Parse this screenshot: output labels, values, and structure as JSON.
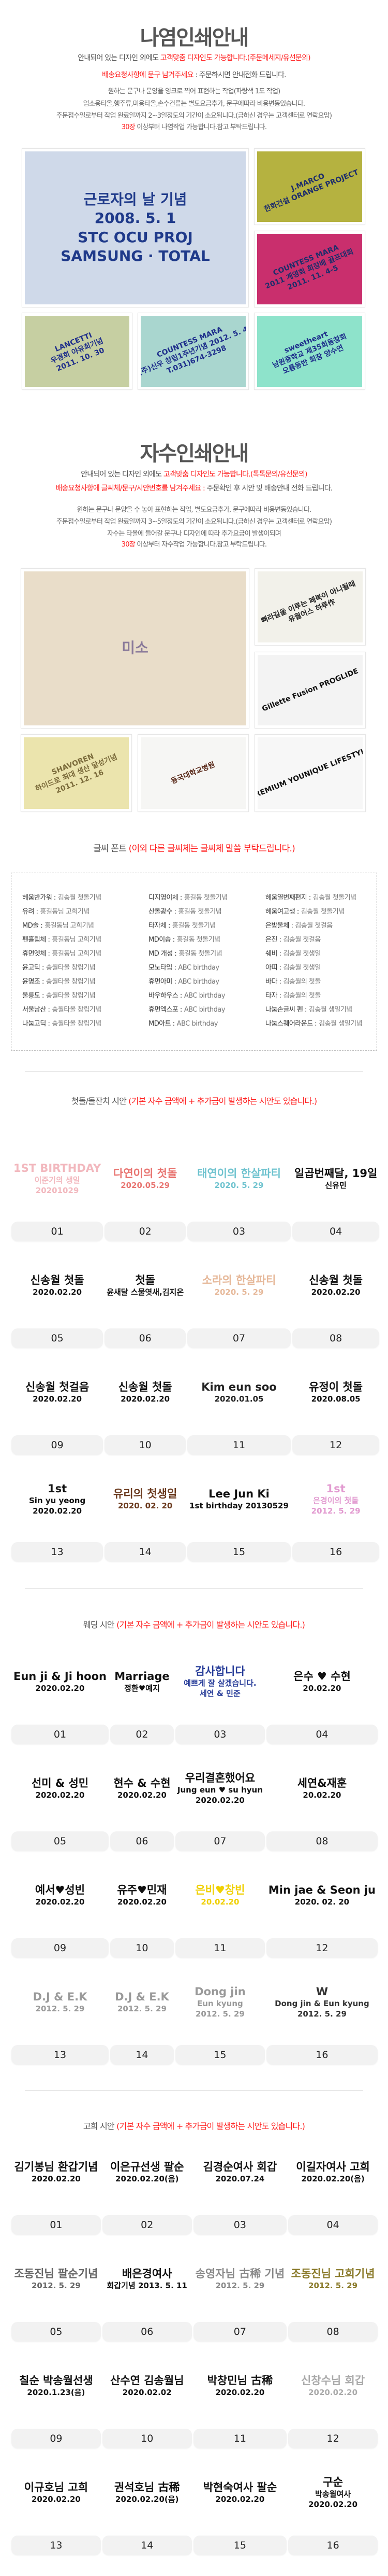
{
  "colors": {
    "accent_red": "#ff2020",
    "title_gray": "#555555",
    "label_bg": "#f2f2f2"
  },
  "print": {
    "title": "나염인쇄안내",
    "line1_plain": "안내되어 있는 디자인 외에도 ",
    "line1_red": "고객맞춤 디자인도 가능합니다.(주문메세지/유선문의)",
    "line2_red": "배송요청사항에 문구 남겨주세요",
    "line2_plain": " : 주문하시면 안내전화 드립니다.",
    "line3": "원하는 문구나 문양을 잉크로 찍어 표현하는 작업(파랑색 1도 작업)",
    "line4": "업소용타올,행주류,미용타올,손수건류는 별도요금추가, 문구에따라 비용변동있습니다.",
    "line5": "주문접수일로부터 작업 완료일까지 2~3일정도의 기간이 소요됩니다.(급하신 경우는 고객센터로 연락요망)",
    "line6_red": "30장",
    "line6_plain": " 이상부터 나염작업 가능합니다.참고 부탁드립니다.",
    "photos": [
      {
        "text": "근로자의 날 기념 / 2008. 5. 1 / STC OCU PROJ / SAMSUNG · TOTAL",
        "bg": "#cfd9e9",
        "fg": "#1f3a8a"
      },
      {
        "text": "J.MARCO / 한화건설 ORANGE PROJECT",
        "bg": "#b5b240",
        "fg": "#1d2d6b"
      },
      {
        "text": "COUNTESS MARA / 2011 계영회 회장배 골프대회 / 2011. 11. 4-5",
        "bg": "#c92f6d",
        "fg": "#1d2d6b"
      },
      {
        "text": "LANCETTI / 우경회 야유회기념 / 2011. 10. 30",
        "bg": "#c6cfa2",
        "fg": "#1d2d8b"
      },
      {
        "text": "COUNTESS MARA / (주)신우 창립1주년기념 2012. 5. 4 / T.031)674-3298",
        "bg": "#a9d6cf",
        "fg": "#1d2d8b"
      },
      {
        "text": "sweetheart / 남원중학교 제35회동창회 / 오름동반 회장 양수연",
        "bg": "#8ee3cb",
        "fg": "#1d2d8b"
      }
    ]
  },
  "embroidery": {
    "title": "자수인쇄안내",
    "line1_plain": "안내되어 있는 디자인 외에도 ",
    "line1_red": "고객맞춤 디자인도 가능합니다.(톡톡문의/유선문의)",
    "line2_red": "배송요청사항에 글씨체/문구/시안번호를 남겨주세요 :",
    "line2_plain": " 주문확인 후 시안 및 배송안내 전화 드립니다.",
    "line3": "원하는 문구나 문양을 수 놓아 표현하는 작업, 별도요금추가, 문구에따라 비용변동있습니다.",
    "line4": "주문접수일로부터 작업 완료일까지 3~5일정도의 기간이 소요됩니다.(급하신 경우는 고객센터로 연락요망)",
    "line5": "자수는 타올에 들어갈 문구나 디자인에 따라 추가요금이 발생이되며",
    "line6_red": "30장",
    "line6_plain": " 이상부터 자수작업 가능합니다.참고 부탁드립니다.",
    "photos": [
      {
        "text": "미소",
        "bg": "#e9ddc9",
        "fg": "#8a7a9a"
      },
      {
        "text": "뻐라길을 이루는 페북이 아니될때 / 유월어스 하루作",
        "bg": "#f2f1ea",
        "fg": "#222"
      },
      {
        "text": "Gillette Fusion PROGLIDE",
        "bg": "#f3f3f3",
        "fg": "#111"
      },
      {
        "text": "SHAVOREN / 하이드로 최대 생산 달성기념 / 2011. 12. 16",
        "bg": "#ebe4ad",
        "fg": "#7a6a3a"
      },
      {
        "text": "동국대학교병원",
        "bg": "#f6f6f4",
        "fg": "#5a2a1a"
      },
      {
        "text": "PREMIUM YOUNIQUE LIFESTYLE",
        "bg": "#f7f7f7",
        "fg": "#111"
      }
    ]
  },
  "fonts": {
    "heading_plain": "글씨 폰트 ",
    "heading_red": "(이외 다른 글씨체는 글씨체 말씀 부탁드립니다.)",
    "columns": [
      [
        {
          "name": "헤움반가워 :",
          "sample": "김송월 첫돌기념"
        },
        {
          "name": "유려 :",
          "sample": "홍길동님 고희기념"
        },
        {
          "name": "MD솔 :",
          "sample": "홍길동님 고희기념"
        },
        {
          "name": "펜흘림체 :",
          "sample": "홍길동님 고희기념"
        },
        {
          "name": "휴먼옛체 :",
          "sample": "홍길동님 고희기념"
        },
        {
          "name": "윤고딕 :",
          "sample": "송월타올 창립기념"
        },
        {
          "name": "윤명조 :",
          "sample": "송월타올 창립기념"
        },
        {
          "name": "울릉도 :",
          "sample": "송월타올 창립기념"
        },
        {
          "name": "서울남산 :",
          "sample": "송월타올 창립기념"
        },
        {
          "name": "나눔고딕 :",
          "sample": "송월타올 창립기념"
        }
      ],
      [
        {
          "name": "디지영이체 :",
          "sample": "홍길동 첫돌기념"
        },
        {
          "name": "산돌광수 :",
          "sample": "홍길동 첫돌기념"
        },
        {
          "name": "타자체 :",
          "sample": "홍길동 첫돌기념"
        },
        {
          "name": "MD이솝 :",
          "sample": "홍길동 첫돌기념"
        },
        {
          "name": "MD 개성 :",
          "sample": "홍길동 첫돌기념"
        },
        {
          "name": "모노타입 :",
          "sample": "ABC birthday"
        },
        {
          "name": "휴먼아미 :",
          "sample": "ABC birthday"
        },
        {
          "name": "바우하우스 :",
          "sample": "ABC birthday"
        },
        {
          "name": "휴먼엑스포 :",
          "sample": "ABC birthday"
        },
        {
          "name": "MD아트 :",
          "sample": "ABC birthday"
        }
      ],
      [
        {
          "name": "헤움열번째편지 :",
          "sample": "김송월 첫돌기념"
        },
        {
          "name": "헤움여고생 :",
          "sample": "김송월 첫돌기념"
        },
        {
          "name": "은방울체 :",
          "sample": "김송월 첫걸음"
        },
        {
          "name": "은진 :",
          "sample": "김송월 첫걸음"
        },
        {
          "name": "쉐비 :",
          "sample": "김송월 첫생일"
        },
        {
          "name": "아띠 :",
          "sample": "김송월 첫생일"
        },
        {
          "name": "바다 :",
          "sample": "김송월의 첫돌"
        },
        {
          "name": "타자 :",
          "sample": "김송월의 첫돌"
        },
        {
          "name": "나눔손글씨 펜 :",
          "sample": "김송월 생일기념"
        },
        {
          "name": "나눔스퀘어라운드 :",
          "sample": "김송월 생일기념"
        }
      ]
    ]
  },
  "galleries": [
    {
      "heading_plain": "첫돌/돌잔치 시안 ",
      "heading_red": "(기본 자수 금액에 + 추가금이 발생하는 시안도 있습니다.)",
      "items": [
        {
          "number": "01",
          "lines": [
            "1ST BIRTHDAY",
            "이준기의 생일",
            "20201029"
          ],
          "color": "#f2b8be"
        },
        {
          "number": "02",
          "lines": [
            "다연이의 첫돌",
            "2020.05.29"
          ],
          "color": "#e8736f"
        },
        {
          "number": "03",
          "lines": [
            "태연이의 한살파티",
            "2020. 5. 29"
          ],
          "color": "#6fc3cf"
        },
        {
          "number": "04",
          "lines": [
            "일곱번째달, 19일",
            "신유민"
          ],
          "color": "#111111"
        },
        {
          "number": "05",
          "lines": [
            "신송월 첫돌",
            "2020.02.20"
          ],
          "color": "#111111"
        },
        {
          "number": "06",
          "lines": [
            "첫돌",
            "윤새달 스물엿새,김지온"
          ],
          "color": "#111111"
        },
        {
          "number": "07",
          "lines": [
            "소라의 한살파티",
            "2020. 5. 29"
          ],
          "color": "#e6b899"
        },
        {
          "number": "08",
          "lines": [
            "신송월 첫돌",
            "2020.02.20"
          ],
          "color": "#111111"
        },
        {
          "number": "09",
          "lines": [
            "신송월 첫걸음",
            "2020.02.20"
          ],
          "color": "#111111"
        },
        {
          "number": "10",
          "lines": [
            "신송월 첫돌",
            "2020.02.20"
          ],
          "color": "#111111"
        },
        {
          "number": "11",
          "lines": [
            "Kim eun soo",
            "2020.01.05"
          ],
          "color": "#222222"
        },
        {
          "number": "12",
          "lines": [
            "유정이 첫돌",
            "2020.08.05"
          ],
          "color": "#111111"
        },
        {
          "number": "13",
          "lines": [
            "1st",
            "Sin yu yeong",
            "2020.02.20"
          ],
          "color": "#111111"
        },
        {
          "number": "14",
          "lines": [
            "유리의 첫생일",
            "2020. 02. 20"
          ],
          "color": "#6b3a1e"
        },
        {
          "number": "15",
          "lines": [
            "Lee Jun Ki",
            "1st birthday 20130529"
          ],
          "color": "#111111"
        },
        {
          "number": "16",
          "lines": [
            "1st",
            "은경이의 첫돌",
            "2012. 5. 29"
          ],
          "color": "#e29ad0"
        }
      ]
    },
    {
      "heading_plain": "웨딩 시안 ",
      "heading_red": "(기본 자수 금액에 + 추가금이 발생하는 시안도 있습니다.)",
      "items": [
        {
          "number": "01",
          "lines": [
            "Eun ji & Ji hoon",
            "2020.02.20"
          ],
          "color": "#111111"
        },
        {
          "number": "02",
          "lines": [
            "Marriage",
            "정환♥예지"
          ],
          "color": "#111111"
        },
        {
          "number": "03",
          "lines": [
            "감사합니다",
            "예쁘게 잘 살겠습니다.",
            "세연 & 민준"
          ],
          "color": "#2a3f9a"
        },
        {
          "number": "04",
          "lines": [
            "은수 ♥ 수현",
            "20.02.20"
          ],
          "color": "#111111"
        },
        {
          "number": "05",
          "lines": [
            "선미 & 성민",
            "2020.02.20"
          ],
          "color": "#111111"
        },
        {
          "number": "06",
          "lines": [
            "현수 & 수현",
            "2020.02.20"
          ],
          "color": "#111111"
        },
        {
          "number": "07",
          "lines": [
            "우리결혼했어요",
            "Jung eun ♥ su hyun",
            "2020.02.20"
          ],
          "color": "#111111"
        },
        {
          "number": "08",
          "lines": [
            "세연&재훈",
            "20.02.20"
          ],
          "color": "#111111"
        },
        {
          "number": "09",
          "lines": [
            "예서♥성빈",
            "2020.02.20"
          ],
          "color": "#111111"
        },
        {
          "number": "10",
          "lines": [
            "유주♥민재",
            "2020.02.20"
          ],
          "color": "#111111"
        },
        {
          "number": "11",
          "lines": [
            "은비♥창빈",
            "20.02.20"
          ],
          "color": "#f0d000"
        },
        {
          "number": "12",
          "lines": [
            "Min jae & Seon ju",
            "2020. 02. 20"
          ],
          "color": "#111111"
        },
        {
          "number": "13",
          "lines": [
            "D.J & E.K",
            "2012. 5. 29"
          ],
          "color": "#9a9a9a"
        },
        {
          "number": "14",
          "lines": [
            "D.J & E.K",
            "2012. 5. 29"
          ],
          "color": "#9a9a9a"
        },
        {
          "number": "15",
          "lines": [
            "Dong jin",
            "Eun kyung",
            "2012. 5. 29"
          ],
          "color": "#999999"
        },
        {
          "number": "16",
          "lines": [
            "W",
            "Dong jin & Eun kyung",
            "2012. 5. 29"
          ],
          "color": "#333333"
        }
      ]
    },
    {
      "heading_plain": "고희 시안 ",
      "heading_red": "(기본 자수 금액에 + 추가금이 발생하는 시안도 있습니다.)",
      "items": [
        {
          "number": "01",
          "lines": [
            "김기봉님 환갑기념",
            "2020.02.20"
          ],
          "color": "#111111"
        },
        {
          "number": "02",
          "lines": [
            "이은규선생 팔순",
            "2020.02.20(음)"
          ],
          "color": "#111111"
        },
        {
          "number": "03",
          "lines": [
            "김경순여사 회갑",
            "2020.07.24"
          ],
          "color": "#111111"
        },
        {
          "number": "04",
          "lines": [
            "이길자여사 고희",
            "2020.02.20(음)"
          ],
          "color": "#111111"
        },
        {
          "number": "05",
          "lines": [
            "조동진님 팔순기념",
            "2012. 5. 29"
          ],
          "color": "#666666"
        },
        {
          "number": "06",
          "lines": [
            "배은경여사",
            "회갑기념 2013. 5. 11"
          ],
          "color": "#111111"
        },
        {
          "number": "07",
          "lines": [
            "송영자님 古稀 기념",
            "2012. 5. 29"
          ],
          "color": "#888888"
        },
        {
          "number": "08",
          "lines": [
            "조동진님 고희기념",
            "2012. 5. 29"
          ],
          "color": "#8a7a2a"
        },
        {
          "number": "09",
          "lines": [
            "칠순 박송월선생",
            "2020.1.23(음)"
          ],
          "color": "#111111"
        },
        {
          "number": "10",
          "lines": [
            "산수연 김송월님",
            "2020.02.02"
          ],
          "color": "#111111"
        },
        {
          "number": "11",
          "lines": [
            "박창민님 古稀",
            "2020.02.20"
          ],
          "color": "#111111"
        },
        {
          "number": "12",
          "lines": [
            "신창수님 회갑",
            "2020.02.20"
          ],
          "color": "#aaaaaa"
        },
        {
          "number": "13",
          "lines": [
            "이규호님 고희",
            "2020.02.20"
          ],
          "color": "#111111"
        },
        {
          "number": "14",
          "lines": [
            "권석호님 古稀",
            "2020.02.20(음)"
          ],
          "color": "#111111"
        },
        {
          "number": "15",
          "lines": [
            "박현숙여사 팔순",
            "2020.02.20"
          ],
          "color": "#111111"
        },
        {
          "number": "16",
          "lines": [
            "구순",
            "박송월여사",
            "2020.02.20"
          ],
          "color": "#111111"
        }
      ]
    }
  ]
}
